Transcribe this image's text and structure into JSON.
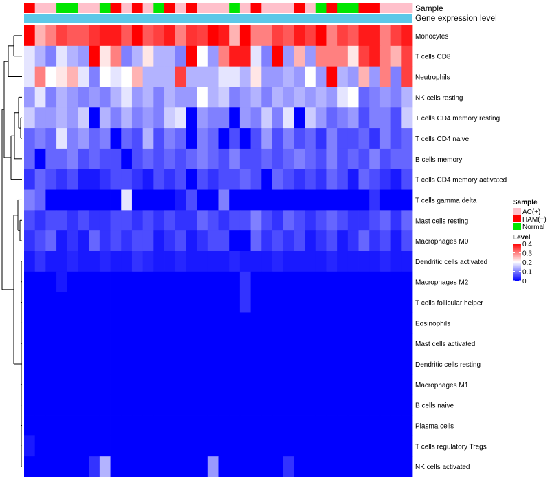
{
  "chart_data": {
    "type": "heatmap",
    "title": "",
    "annotations": {
      "sample_label": "Sample",
      "expression_label": "Gene expression level",
      "sample_groups": [
        "HAM(+)",
        "AC(+)",
        "AC(+)",
        "Normal",
        "Normal",
        "AC(+)",
        "AC(+)",
        "Normal",
        "HAM(+)",
        "AC(+)",
        "HAM(+)",
        "AC(+)",
        "Normal",
        "HAM(+)",
        "AC(+)",
        "HAM(+)",
        "AC(+)",
        "AC(+)",
        "AC(+)",
        "Normal",
        "AC(+)",
        "HAM(+)",
        "AC(+)",
        "AC(+)",
        "AC(+)",
        "HAM(+)",
        "AC(+)",
        "Normal",
        "HAM(+)",
        "Normal",
        "Normal",
        "HAM(+)",
        "HAM(+)",
        "AC(+)",
        "AC(+)",
        "AC(+)"
      ]
    },
    "rows": [
      "Monocytes",
      "T cells CD8",
      "Neutrophils",
      "NK cells resting",
      "T cells CD4 memory resting",
      "T cells CD4 naive",
      "B cells memory",
      "T cells CD4 memory activated",
      "T cells gamma delta",
      "Mast cells resting",
      "Macrophages M0",
      "Dendritic cells activated",
      "Macrophages M2",
      "T cells follicular helper",
      "Eosinophils",
      "Mast cells activated",
      "Dendritic cells resting",
      "Macrophages M1",
      "B cells naive",
      "Plasma cells",
      "T cells regulatory  Tregs",
      "NK cells activated"
    ],
    "n_columns": 36,
    "values": [
      [
        0.4,
        0.26,
        0.3,
        0.35,
        0.33,
        0.33,
        0.36,
        0.38,
        0.38,
        0.33,
        0.4,
        0.33,
        0.35,
        0.38,
        0.3,
        0.36,
        0.35,
        0.4,
        0.38,
        0.26,
        0.4,
        0.3,
        0.3,
        0.35,
        0.33,
        0.38,
        0.35,
        0.4,
        0.3,
        0.35,
        0.33,
        0.38,
        0.38,
        0.3,
        0.35,
        0.38
      ],
      [
        0.18,
        0.14,
        0.1,
        0.18,
        0.14,
        0.12,
        0.4,
        0.22,
        0.3,
        0.1,
        0.14,
        0.22,
        0.14,
        0.14,
        0.1,
        0.4,
        0.2,
        0.12,
        0.3,
        0.38,
        0.38,
        0.18,
        0.1,
        0.4,
        0.12,
        0.26,
        0.12,
        0.3,
        0.3,
        0.3,
        0.22,
        0.35,
        0.38,
        0.3,
        0.26,
        0.35
      ],
      [
        0.18,
        0.3,
        0.2,
        0.22,
        0.26,
        0.18,
        0.1,
        0.2,
        0.18,
        0.2,
        0.26,
        0.14,
        0.14,
        0.14,
        0.35,
        0.14,
        0.14,
        0.14,
        0.18,
        0.18,
        0.14,
        0.22,
        0.12,
        0.12,
        0.14,
        0.12,
        0.2,
        0.12,
        0.4,
        0.14,
        0.12,
        0.26,
        0.12,
        0.3,
        0.1,
        0.35
      ],
      [
        0.12,
        0.18,
        0.1,
        0.14,
        0.12,
        0.1,
        0.12,
        0.1,
        0.14,
        0.18,
        0.12,
        0.14,
        0.1,
        0.14,
        0.12,
        0.12,
        0.2,
        0.14,
        0.16,
        0.1,
        0.12,
        0.14,
        0.1,
        0.14,
        0.12,
        0.14,
        0.12,
        0.14,
        0.12,
        0.18,
        0.2,
        0.08,
        0.1,
        0.12,
        0.1,
        0.14
      ],
      [
        0.16,
        0.12,
        0.12,
        0.14,
        0.12,
        0.16,
        0.0,
        0.14,
        0.1,
        0.14,
        0.1,
        0.12,
        0.1,
        0.16,
        0.18,
        0.0,
        0.12,
        0.1,
        0.1,
        0.0,
        0.12,
        0.1,
        0.16,
        0.1,
        0.18,
        0.0,
        0.16,
        0.12,
        0.08,
        0.1,
        0.12,
        0.06,
        0.1,
        0.1,
        0.06,
        0.16
      ],
      [
        0.08,
        0.1,
        0.08,
        0.18,
        0.1,
        0.12,
        0.08,
        0.1,
        0.0,
        0.08,
        0.06,
        0.14,
        0.06,
        0.1,
        0.08,
        0.0,
        0.1,
        0.08,
        0.0,
        0.06,
        0.0,
        0.06,
        0.12,
        0.06,
        0.1,
        0.06,
        0.08,
        0.04,
        0.1,
        0.06,
        0.06,
        0.08,
        0.04,
        0.1,
        0.06,
        0.08
      ],
      [
        0.08,
        0.0,
        0.08,
        0.08,
        0.1,
        0.06,
        0.08,
        0.06,
        0.06,
        0.0,
        0.06,
        0.08,
        0.06,
        0.08,
        0.06,
        0.08,
        0.1,
        0.08,
        0.06,
        0.1,
        0.06,
        0.06,
        0.08,
        0.06,
        0.08,
        0.1,
        0.08,
        0.06,
        0.1,
        0.06,
        0.08,
        0.06,
        0.1,
        0.06,
        0.08,
        0.08
      ],
      [
        0.04,
        0.08,
        0.06,
        0.04,
        0.06,
        0.02,
        0.02,
        0.04,
        0.06,
        0.06,
        0.04,
        0.02,
        0.06,
        0.04,
        0.06,
        0.0,
        0.06,
        0.04,
        0.06,
        0.06,
        0.08,
        0.06,
        0.0,
        0.08,
        0.06,
        0.04,
        0.06,
        0.04,
        0.08,
        0.06,
        0.02,
        0.08,
        0.06,
        0.04,
        0.02,
        0.06
      ],
      [
        0.1,
        0.08,
        0.0,
        0.0,
        0.0,
        0.0,
        0.0,
        0.0,
        0.0,
        0.18,
        0.0,
        0.0,
        0.0,
        0.0,
        0.02,
        0.06,
        0.0,
        0.0,
        0.1,
        0.0,
        0.0,
        0.0,
        0.0,
        0.0,
        0.0,
        0.0,
        0.0,
        0.0,
        0.0,
        0.0,
        0.0,
        0.0,
        0.04,
        0.0,
        0.0,
        0.0
      ],
      [
        0.06,
        0.04,
        0.06,
        0.06,
        0.04,
        0.06,
        0.04,
        0.04,
        0.06,
        0.06,
        0.04,
        0.06,
        0.04,
        0.06,
        0.04,
        0.04,
        0.08,
        0.06,
        0.04,
        0.06,
        0.06,
        0.1,
        0.06,
        0.04,
        0.08,
        0.06,
        0.04,
        0.06,
        0.08,
        0.06,
        0.04,
        0.04,
        0.06,
        0.08,
        0.04,
        0.08
      ],
      [
        0.04,
        0.06,
        0.08,
        0.02,
        0.04,
        0.02,
        0.08,
        0.04,
        0.06,
        0.04,
        0.06,
        0.06,
        0.02,
        0.04,
        0.06,
        0.02,
        0.04,
        0.06,
        0.06,
        0.0,
        0.0,
        0.08,
        0.04,
        0.06,
        0.04,
        0.06,
        0.02,
        0.04,
        0.06,
        0.02,
        0.04,
        0.08,
        0.04,
        0.06,
        0.02,
        0.06
      ],
      [
        0.02,
        0.04,
        0.02,
        0.02,
        0.03,
        0.02,
        0.02,
        0.03,
        0.02,
        0.02,
        0.04,
        0.03,
        0.02,
        0.02,
        0.03,
        0.02,
        0.02,
        0.02,
        0.02,
        0.03,
        0.02,
        0.02,
        0.02,
        0.03,
        0.02,
        0.02,
        0.02,
        0.02,
        0.03,
        0.02,
        0.02,
        0.02,
        0.02,
        0.03,
        0.02,
        0.02
      ],
      [
        0.0,
        0.0,
        0.0,
        0.02,
        0.0,
        0.0,
        0.0,
        0.0,
        0.0,
        0.0,
        0.0,
        0.0,
        0.0,
        0.0,
        0.0,
        0.0,
        0.0,
        0.0,
        0.0,
        0.0,
        0.04,
        0.0,
        0.0,
        0.0,
        0.0,
        0.0,
        0.0,
        0.0,
        0.0,
        0.0,
        0.0,
        0.0,
        0.0,
        0.0,
        0.0,
        0.0
      ],
      [
        0.0,
        0.0,
        0.0,
        0.0,
        0.0,
        0.0,
        0.0,
        0.0,
        0.0,
        0.0,
        0.0,
        0.0,
        0.0,
        0.0,
        0.0,
        0.0,
        0.0,
        0.0,
        0.0,
        0.0,
        0.04,
        0.0,
        0.0,
        0.0,
        0.0,
        0.0,
        0.0,
        0.0,
        0.0,
        0.0,
        0.0,
        0.0,
        0.0,
        0.0,
        0.0,
        0.0
      ],
      [
        0.0,
        0.0,
        0.0,
        0.0,
        0.0,
        0.0,
        0.0,
        0.0,
        0.0,
        0.0,
        0.0,
        0.0,
        0.0,
        0.0,
        0.0,
        0.0,
        0.0,
        0.0,
        0.0,
        0.0,
        0.0,
        0.0,
        0.0,
        0.0,
        0.0,
        0.0,
        0.0,
        0.0,
        0.0,
        0.0,
        0.0,
        0.0,
        0.0,
        0.0,
        0.0,
        0.0
      ],
      [
        0.0,
        0.0,
        0.0,
        0.0,
        0.0,
        0.0,
        0.0,
        0.0,
        0.0,
        0.0,
        0.0,
        0.0,
        0.0,
        0.0,
        0.0,
        0.0,
        0.0,
        0.0,
        0.0,
        0.0,
        0.0,
        0.0,
        0.0,
        0.0,
        0.0,
        0.0,
        0.0,
        0.0,
        0.0,
        0.0,
        0.0,
        0.0,
        0.0,
        0.0,
        0.0,
        0.0
      ],
      [
        0.0,
        0.0,
        0.0,
        0.0,
        0.0,
        0.0,
        0.0,
        0.0,
        0.0,
        0.0,
        0.0,
        0.0,
        0.0,
        0.0,
        0.0,
        0.0,
        0.0,
        0.0,
        0.0,
        0.0,
        0.0,
        0.0,
        0.0,
        0.0,
        0.0,
        0.0,
        0.0,
        0.0,
        0.0,
        0.0,
        0.0,
        0.0,
        0.0,
        0.0,
        0.0,
        0.0
      ],
      [
        0.0,
        0.0,
        0.0,
        0.0,
        0.0,
        0.0,
        0.0,
        0.0,
        0.0,
        0.0,
        0.0,
        0.0,
        0.0,
        0.0,
        0.0,
        0.0,
        0.0,
        0.0,
        0.0,
        0.0,
        0.0,
        0.0,
        0.0,
        0.0,
        0.0,
        0.0,
        0.0,
        0.0,
        0.0,
        0.0,
        0.0,
        0.0,
        0.0,
        0.0,
        0.0,
        0.0
      ],
      [
        0.0,
        0.0,
        0.0,
        0.0,
        0.0,
        0.0,
        0.0,
        0.0,
        0.0,
        0.0,
        0.0,
        0.0,
        0.0,
        0.0,
        0.0,
        0.0,
        0.0,
        0.0,
        0.0,
        0.0,
        0.0,
        0.0,
        0.0,
        0.0,
        0.0,
        0.0,
        0.0,
        0.0,
        0.0,
        0.0,
        0.0,
        0.0,
        0.0,
        0.0,
        0.0,
        0.0
      ],
      [
        0.0,
        0.0,
        0.0,
        0.0,
        0.0,
        0.0,
        0.0,
        0.0,
        0.0,
        0.0,
        0.0,
        0.0,
        0.0,
        0.0,
        0.0,
        0.0,
        0.0,
        0.0,
        0.0,
        0.0,
        0.0,
        0.0,
        0.0,
        0.0,
        0.0,
        0.0,
        0.0,
        0.0,
        0.0,
        0.0,
        0.0,
        0.0,
        0.0,
        0.0,
        0.0,
        0.0
      ],
      [
        0.02,
        0.0,
        0.0,
        0.0,
        0.0,
        0.0,
        0.0,
        0.0,
        0.0,
        0.0,
        0.0,
        0.0,
        0.0,
        0.0,
        0.0,
        0.0,
        0.0,
        0.0,
        0.0,
        0.0,
        0.0,
        0.0,
        0.0,
        0.0,
        0.0,
        0.0,
        0.0,
        0.0,
        0.0,
        0.0,
        0.0,
        0.0,
        0.0,
        0.0,
        0.0,
        0.0
      ],
      [
        0.0,
        0.0,
        0.0,
        0.0,
        0.0,
        0.0,
        0.04,
        0.14,
        0.0,
        0.0,
        0.0,
        0.0,
        0.0,
        0.0,
        0.0,
        0.0,
        0.0,
        0.12,
        0.0,
        0.0,
        0.0,
        0.0,
        0.0,
        0.0,
        0.04,
        0.0,
        0.0,
        0.0,
        0.0,
        0.0,
        0.0,
        0.0,
        0.0,
        0.0,
        0.0,
        0.0
      ]
    ],
    "legend": {
      "sample_title": "Sample",
      "sample_entries": [
        {
          "label": "AC(+)",
          "color": "#ffc0cb"
        },
        {
          "label": "HAM(+)",
          "color": "#ff0000"
        },
        {
          "label": "Normal",
          "color": "#00e600"
        }
      ],
      "level_title": "Level",
      "level_ticks": [
        "0.4",
        "0.3",
        "0.2",
        "0.1",
        "0"
      ],
      "level_tick_values": [
        0.4,
        0.3,
        0.2,
        0.1,
        0
      ],
      "range": [
        0,
        0.4
      ],
      "colors": {
        "low": "#0000ff",
        "mid": "#ffffff",
        "high": "#ff0000"
      }
    },
    "expression_bar_color": "#5bc8e8"
  }
}
